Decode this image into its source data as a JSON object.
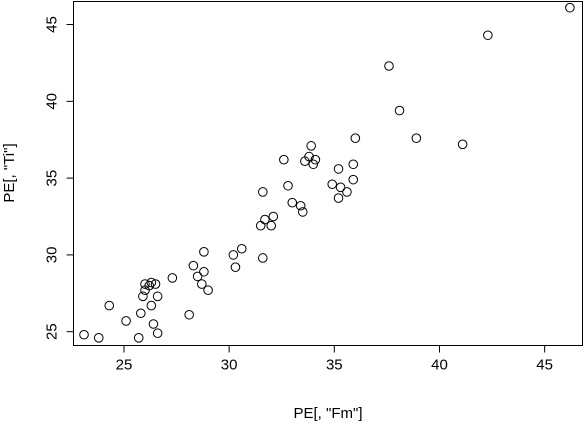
{
  "chart_data": {
    "type": "scatter",
    "title": "",
    "xlabel": "PE[, \"Fm\"]",
    "ylabel": "PE[, \"Ti\"]",
    "xlim": [
      22.6,
      46.8
    ],
    "ylim": [
      24.1,
      46.5
    ],
    "xticks": [
      25,
      30,
      35,
      40,
      45
    ],
    "yticks": [
      25,
      30,
      35,
      40,
      45
    ],
    "grid": false,
    "legend": "none",
    "marker": "open-circle",
    "x": [
      23.1,
      23.8,
      24.3,
      25.1,
      25.7,
      25.8,
      25.9,
      26.0,
      26.0,
      26.2,
      26.3,
      26.3,
      26.4,
      26.5,
      26.6,
      26.6,
      27.3,
      28.1,
      28.3,
      28.5,
      28.7,
      28.8,
      28.8,
      29.0,
      30.2,
      30.3,
      30.6,
      31.5,
      31.6,
      31.6,
      31.7,
      32.0,
      32.1,
      32.6,
      32.8,
      33.0,
      33.4,
      33.5,
      33.6,
      33.8,
      33.9,
      34.0,
      34.1,
      34.9,
      35.2,
      35.2,
      35.3,
      35.6,
      35.9,
      35.9,
      36.0,
      37.6,
      38.1,
      38.9,
      41.1,
      42.3,
      46.2
    ],
    "y": [
      24.8,
      24.6,
      26.7,
      25.7,
      24.6,
      26.2,
      27.3,
      27.7,
      28.1,
      28.0,
      28.2,
      26.7,
      25.5,
      28.1,
      27.3,
      24.9,
      28.5,
      26.1,
      29.3,
      28.6,
      28.1,
      30.2,
      28.9,
      27.7,
      30.0,
      29.2,
      30.4,
      31.9,
      29.8,
      34.1,
      32.3,
      31.9,
      32.5,
      36.2,
      34.5,
      33.4,
      33.2,
      32.8,
      36.1,
      36.4,
      37.1,
      35.9,
      36.2,
      34.6,
      33.7,
      35.6,
      34.4,
      34.1,
      34.9,
      35.9,
      37.6,
      42.3,
      39.4,
      37.6,
      37.2,
      44.3,
      46.1
    ]
  }
}
